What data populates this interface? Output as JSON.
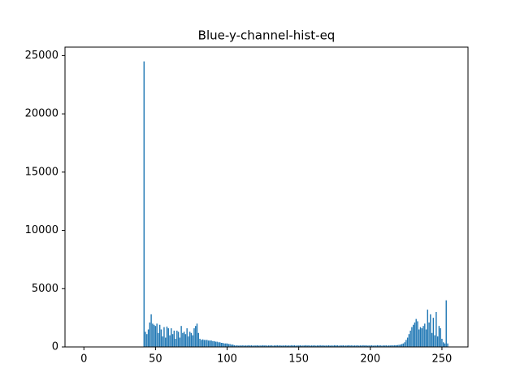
{
  "chart_data": {
    "type": "bar",
    "title": "Blue-y-channel-hist-eq",
    "color": "#1f77b4",
    "x": [
      0,
      1,
      2,
      3,
      4,
      5,
      6,
      7,
      8,
      9,
      10,
      11,
      12,
      13,
      14,
      15,
      16,
      17,
      18,
      19,
      20,
      21,
      22,
      23,
      24,
      25,
      26,
      27,
      28,
      29,
      30,
      31,
      32,
      33,
      34,
      35,
      36,
      37,
      38,
      39,
      40,
      41,
      42,
      43,
      44,
      45,
      46,
      47,
      48,
      49,
      50,
      51,
      52,
      53,
      54,
      55,
      56,
      57,
      58,
      59,
      60,
      61,
      62,
      63,
      64,
      65,
      66,
      67,
      68,
      69,
      70,
      71,
      72,
      73,
      74,
      75,
      76,
      77,
      78,
      79,
      80,
      81,
      82,
      83,
      84,
      85,
      86,
      87,
      88,
      89,
      90,
      91,
      92,
      93,
      94,
      95,
      96,
      97,
      98,
      99,
      100,
      101,
      102,
      103,
      104,
      105,
      106,
      107,
      108,
      109,
      110,
      111,
      112,
      113,
      114,
      115,
      116,
      117,
      118,
      119,
      120,
      121,
      122,
      123,
      124,
      125,
      126,
      127,
      128,
      129,
      130,
      131,
      132,
      133,
      134,
      135,
      136,
      137,
      138,
      139,
      140,
      141,
      142,
      143,
      144,
      145,
      146,
      147,
      148,
      149,
      150,
      151,
      152,
      153,
      154,
      155,
      156,
      157,
      158,
      159,
      160,
      161,
      162,
      163,
      164,
      165,
      166,
      167,
      168,
      169,
      170,
      171,
      172,
      173,
      174,
      175,
      176,
      177,
      178,
      179,
      180,
      181,
      182,
      183,
      184,
      185,
      186,
      187,
      188,
      189,
      190,
      191,
      192,
      193,
      194,
      195,
      196,
      197,
      198,
      199,
      200,
      201,
      202,
      203,
      204,
      205,
      206,
      207,
      208,
      209,
      210,
      211,
      212,
      213,
      214,
      215,
      216,
      217,
      218,
      219,
      220,
      221,
      222,
      223,
      224,
      225,
      226,
      227,
      228,
      229,
      230,
      231,
      232,
      233,
      234,
      235,
      236,
      237,
      238,
      239,
      240,
      241,
      242,
      243,
      244,
      245,
      246,
      247,
      248,
      249,
      250,
      251,
      252,
      253,
      254,
      255
    ],
    "values": [
      0,
      0,
      0,
      0,
      0,
      0,
      0,
      0,
      0,
      0,
      0,
      0,
      0,
      0,
      0,
      0,
      0,
      0,
      0,
      0,
      0,
      0,
      0,
      0,
      0,
      0,
      0,
      0,
      0,
      0,
      0,
      0,
      0,
      0,
      0,
      0,
      0,
      0,
      0,
      0,
      0,
      0,
      24500,
      1300,
      1100,
      1500,
      2100,
      2800,
      2000,
      1900,
      1800,
      2000,
      1200,
      1900,
      1500,
      900,
      1700,
      800,
      1750,
      1600,
      1000,
      1600,
      1100,
      1400,
      700,
      1400,
      1300,
      800,
      1800,
      1200,
      1300,
      1100,
      1600,
      900,
      1300,
      1200,
      1000,
      1600,
      1800,
      2000,
      1200,
      700,
      600,
      650,
      600,
      600,
      600,
      550,
      550,
      550,
      500,
      500,
      450,
      450,
      400,
      400,
      350,
      350,
      300,
      300,
      300,
      250,
      250,
      200,
      200,
      150,
      120,
      140,
      110,
      130,
      120,
      140,
      110,
      130,
      120,
      150,
      120,
      140,
      110,
      130,
      120,
      140,
      110,
      130,
      120,
      150,
      120,
      140,
      110,
      130,
      120,
      140,
      110,
      130,
      120,
      150,
      120,
      140,
      110,
      130,
      120,
      140,
      110,
      130,
      120,
      150,
      120,
      140,
      110,
      130,
      120,
      140,
      110,
      130,
      120,
      150,
      120,
      140,
      110,
      130,
      120,
      140,
      110,
      130,
      120,
      150,
      120,
      140,
      110,
      130,
      120,
      140,
      110,
      130,
      120,
      150,
      120,
      140,
      110,
      130,
      120,
      140,
      110,
      130,
      120,
      150,
      120,
      140,
      110,
      130,
      120,
      140,
      110,
      130,
      120,
      150,
      120,
      140,
      110,
      130,
      120,
      140,
      110,
      130,
      120,
      150,
      120,
      140,
      110,
      130,
      120,
      140,
      110,
      130,
      120,
      140,
      130,
      150,
      140,
      160,
      180,
      200,
      250,
      300,
      400,
      600,
      800,
      1100,
      1400,
      1700,
      1900,
      2100,
      2400,
      2200,
      1500,
      1700,
      1600,
      1800,
      2000,
      1500,
      3200,
      2100,
      2800,
      1200,
      2500,
      1000,
      3000,
      900,
      1800,
      1600,
      700,
      400,
      300,
      4000,
      300,
      0
    ],
    "xlim": [
      -13.19,
      268.19
    ],
    "xticks": [
      0,
      50,
      100,
      150,
      200,
      250
    ],
    "ylim": [
      0,
      25725
    ],
    "yticks": [
      0,
      5000,
      10000,
      15000,
      20000,
      25000
    ]
  }
}
